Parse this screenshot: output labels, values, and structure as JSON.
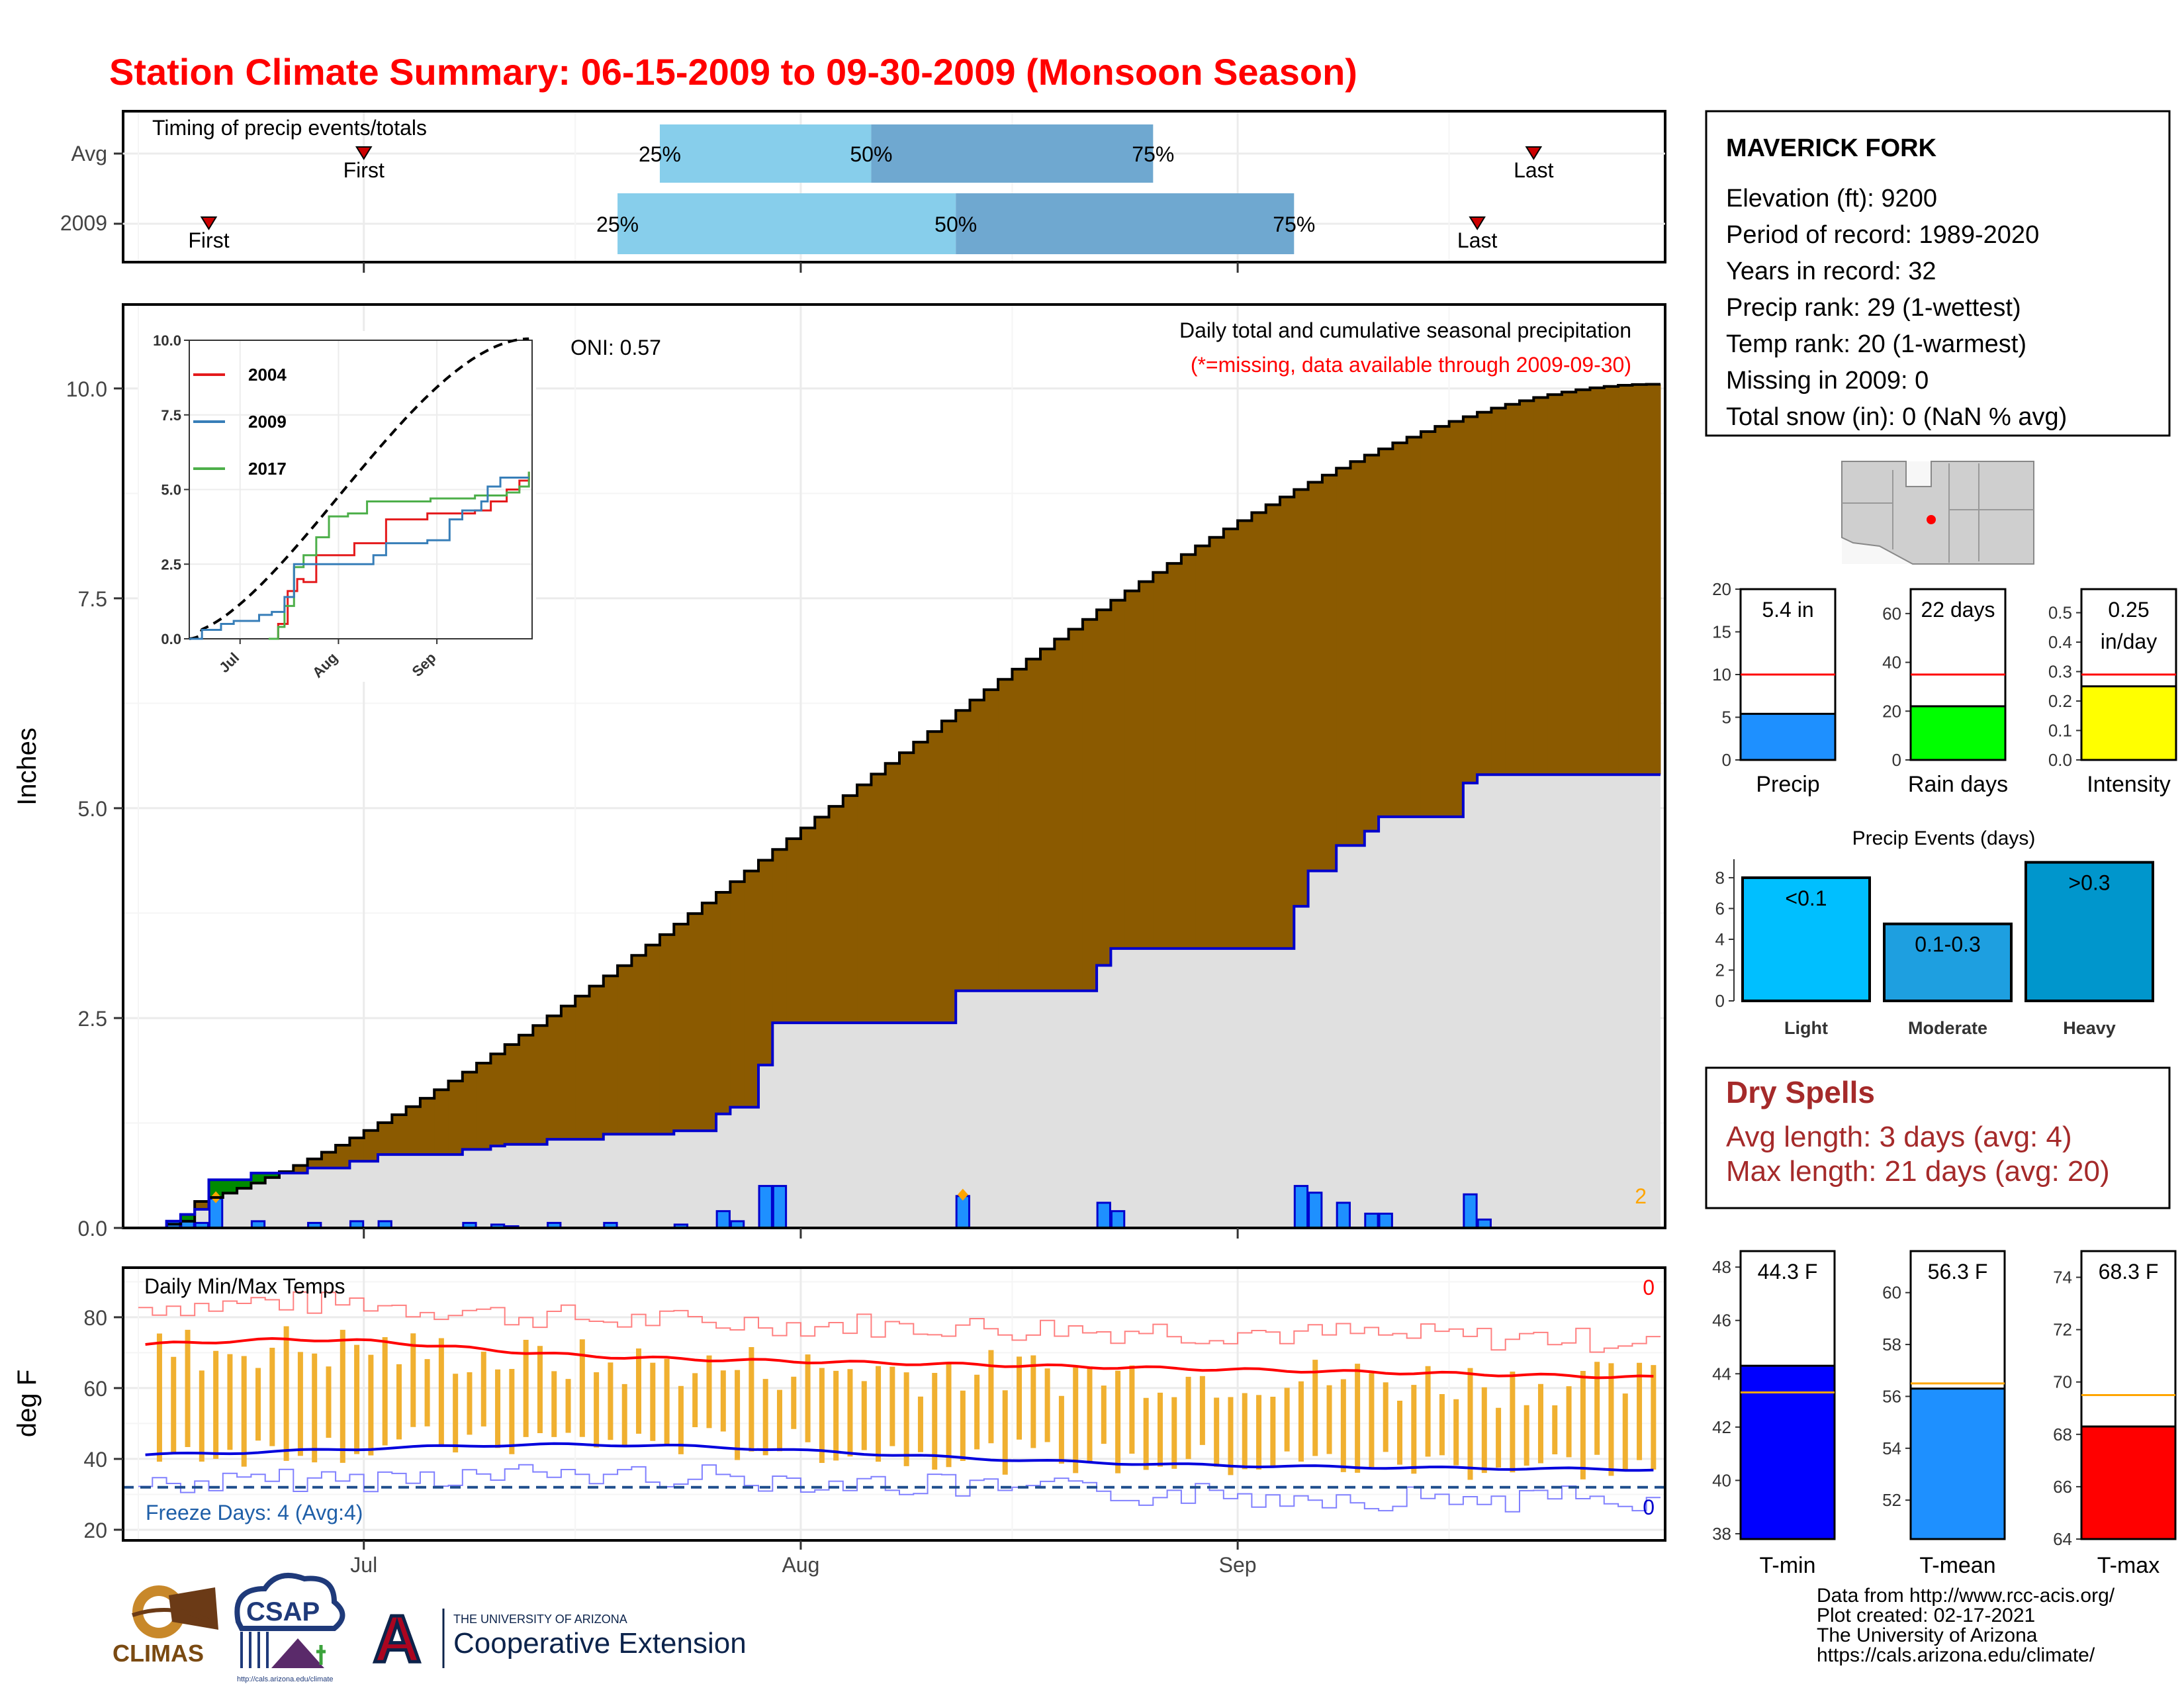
{
  "title": "Station Climate Summary: 06-15-2009 to 09-30-2009 (Monsoon Season)",
  "colors": {
    "title": "#ff0000",
    "brown": "#8b5a00",
    "green": "#008b00",
    "bar_blue": "#1e90ff",
    "line_blue": "#0000cd",
    "gray_fill": "#e0e0e0",
    "orange": "#ffa500",
    "dark_red": "#a52a2a",
    "light_blue": "#87ceeb",
    "mid_blue": "#6fa8d0"
  },
  "timing": {
    "title": "Timing of precip events/totals",
    "rows": [
      {
        "label": "Avg",
        "first": "First",
        "last": "Last",
        "p25": "25%",
        "p50": "50%",
        "p75": "75%"
      },
      {
        "label": "2009",
        "first": "First",
        "last": "Last",
        "p25": "25%",
        "p50": "50%",
        "p75": "75%"
      }
    ],
    "dates": {
      "avg": {
        "first": "2009-07-01",
        "p25": "2009-07-22",
        "p50": "2009-08-06",
        "p75": "2009-08-26",
        "last": "2009-09-22"
      },
      "y2009": {
        "first": "2009-06-20",
        "p25": "2009-07-19",
        "p50": "2009-08-12",
        "p75": "2009-09-05",
        "last": "2009-09-18"
      }
    }
  },
  "station": {
    "name": "MAVERICK FORK",
    "lines": [
      "Elevation (ft): 9200",
      "Period of record: 1989-2020",
      "Years in record: 32",
      "Precip rank: 29 (1-wettest)",
      "Temp rank: 20 (1-warmest)",
      "Missing in 2009: 0",
      "Total snow (in): 0 (NaN % avg)"
    ]
  },
  "main_chart": {
    "ylabel": "Inches",
    "y_ticks": [
      "0.0",
      "2.5",
      "5.0",
      "7.5",
      "10.0"
    ],
    "x_ticks": [
      "Jul",
      "Aug",
      "Sep"
    ],
    "oni": "ONI: 0.57",
    "caption": "Daily total and cumulative seasonal precipitation",
    "missing_note": "(*=missing, data available through 2009-09-30)",
    "corner_count": "2"
  },
  "inset": {
    "y_ticks": [
      "0.0",
      "2.5",
      "5.0",
      "7.5",
      "10.0"
    ],
    "x_ticks": [
      "Jul",
      "Aug",
      "Sep"
    ],
    "legend": [
      "2004",
      "2009",
      "2017"
    ]
  },
  "mini_bars": [
    {
      "label": "Precip",
      "value_text": "5.4 in",
      "y_ticks": [
        "0",
        "5",
        "10",
        "15",
        "20"
      ],
      "ymax": 20,
      "value": 5.4,
      "avg": 10.0,
      "color": "#1e90ff"
    },
    {
      "label": "Rain days",
      "value_text": "22 days",
      "y_ticks": [
        "0",
        "20",
        "40",
        "60"
      ],
      "ymax": 70,
      "value": 22,
      "avg": 35,
      "color": "#00ff00"
    },
    {
      "label": "Intensity",
      "value_text": "0.25 in/day",
      "value_text_1": "0.25",
      "value_text_2": "in/day",
      "y_ticks": [
        "0.0",
        "0.1",
        "0.2",
        "0.3",
        "0.4",
        "0.5"
      ],
      "ymax": 0.58,
      "value": 0.25,
      "avg": 0.29,
      "color": "#ffff00"
    }
  ],
  "precip_events": {
    "title": "Precip Events (days)",
    "y_ticks": [
      "0",
      "2",
      "4",
      "6",
      "8"
    ],
    "ymax": 9.2,
    "bars": [
      {
        "label": "Light",
        "range": "<0.1",
        "value": 8,
        "color": "#00bfff"
      },
      {
        "label": "Moderate",
        "range": "0.1-0.3",
        "value": 5,
        "color": "#1e9fe0"
      },
      {
        "label": "Heavy",
        "range": ">0.3",
        "value": 9,
        "color": "#0096cc"
      }
    ]
  },
  "dry_spells": {
    "title": "Dry Spells",
    "avg_line": "Avg length: 3 days (avg: 4)",
    "max_line": "Max length: 21 days (avg: 20)"
  },
  "temp_chart": {
    "title": "Daily Min/Max Temps",
    "ylabel": "deg F",
    "y_ticks": [
      "20",
      "40",
      "60",
      "80"
    ],
    "x_ticks": [
      "Jul",
      "Aug",
      "Sep"
    ],
    "freeze": "Freeze Days: 4 (Avg:4)",
    "count_hot": "0",
    "count_cold": "0"
  },
  "temp_bars": [
    {
      "label": "T-min",
      "value_text": "44.3 F",
      "y_ticks": [
        "38",
        "40",
        "42",
        "44",
        "46",
        "48"
      ],
      "ymin": 37.8,
      "ymax": 48.6,
      "value": 44.3,
      "avg": 43.3,
      "color": "#0000ff"
    },
    {
      "label": "T-mean",
      "value_text": "56.3 F",
      "y_ticks": [
        "52",
        "54",
        "56",
        "58",
        "60"
      ],
      "ymin": 50.5,
      "ymax": 61.6,
      "value": 56.3,
      "avg": 56.5,
      "color": "#1e90ff"
    },
    {
      "label": "T-max",
      "value_text": "68.3 F",
      "y_ticks": [
        "64",
        "66",
        "68",
        "70",
        "72",
        "74"
      ],
      "ymin": 64.0,
      "ymax": 75.0,
      "value": 68.3,
      "avg": 69.5,
      "color": "#ff0000"
    }
  ],
  "footer": {
    "lines": [
      "Data from http://www.rcc-acis.org/",
      "Plot created: 02-17-2021",
      "The University of Arizona",
      "https://cals.arizona.edu/climate/"
    ],
    "logo_climas": "CLIMAS",
    "logo_csap": "CSAP",
    "logo_csap_url": "http://cals.arizona.edu/climate",
    "logo_ua_small": "THE UNIVERSITY OF ARIZONA",
    "logo_ua_big": "Cooperative Extension",
    "logo_a": "A"
  },
  "chart_data": [
    {
      "type": "area",
      "title": "Daily total and cumulative seasonal precipitation",
      "ylabel": "Inches",
      "ylim": [
        0,
        11
      ],
      "x_range": [
        "2009-06-15",
        "2009-09-30"
      ],
      "daily_precip": [
        {
          "date": "2009-06-17",
          "value": 0.08
        },
        {
          "date": "2009-06-18",
          "value": 0.08
        },
        {
          "date": "2009-06-19",
          "value": 0.06
        },
        {
          "date": "2009-06-20",
          "value": 0.35
        },
        {
          "date": "2009-06-23",
          "value": 0.08
        },
        {
          "date": "2009-06-27",
          "value": 0.06
        },
        {
          "date": "2009-06-30",
          "value": 0.08
        },
        {
          "date": "2009-07-02",
          "value": 0.08
        },
        {
          "date": "2009-07-08",
          "value": 0.06
        },
        {
          "date": "2009-07-10",
          "value": 0.04
        },
        {
          "date": "2009-07-11",
          "value": 0.02
        },
        {
          "date": "2009-07-14",
          "value": 0.06
        },
        {
          "date": "2009-07-18",
          "value": 0.06
        },
        {
          "date": "2009-07-23",
          "value": 0.04
        },
        {
          "date": "2009-07-26",
          "value": 0.2
        },
        {
          "date": "2009-07-27",
          "value": 0.08
        },
        {
          "date": "2009-07-29",
          "value": 0.5
        },
        {
          "date": "2009-07-30",
          "value": 0.5
        },
        {
          "date": "2009-08-12",
          "value": 0.38
        },
        {
          "date": "2009-08-22",
          "value": 0.3
        },
        {
          "date": "2009-08-23",
          "value": 0.2
        },
        {
          "date": "2009-09-05",
          "value": 0.5
        },
        {
          "date": "2009-09-06",
          "value": 0.42
        },
        {
          "date": "2009-09-08",
          "value": 0.3
        },
        {
          "date": "2009-09-10",
          "value": 0.17
        },
        {
          "date": "2009-09-11",
          "value": 0.17
        },
        {
          "date": "2009-09-17",
          "value": 0.4
        },
        {
          "date": "2009-09-18",
          "value": 0.1
        }
      ],
      "cumulative_avg_end": 10.05,
      "cumulative_2009_end": 5.4
    },
    {
      "type": "line",
      "title": "Daily Min/Max Temps",
      "ylabel": "deg F",
      "ylim": [
        17,
        94
      ],
      "freeze_line": 32,
      "avg_max_start": 71,
      "avg_max_peak": 75,
      "avg_max_end": 63,
      "avg_min_start": 40,
      "avg_min_peak": 47,
      "avg_min_end": 37
    }
  ]
}
